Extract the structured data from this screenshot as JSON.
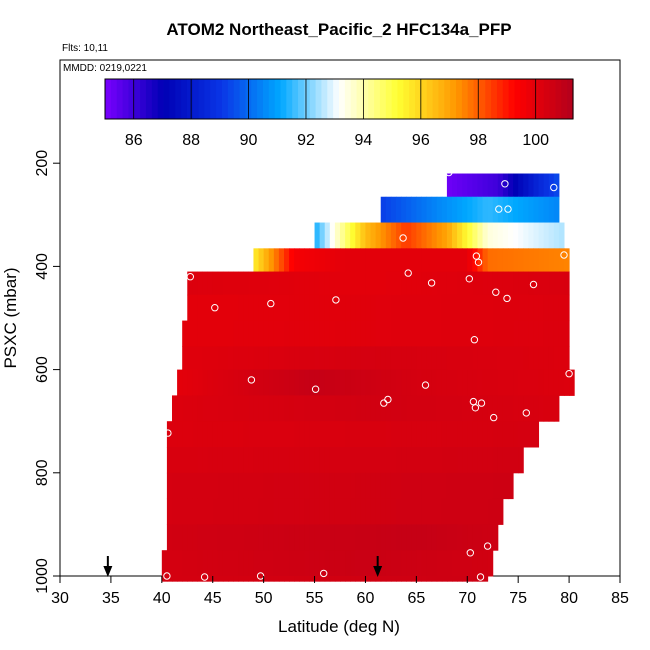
{
  "chart_data": {
    "type": "heatmap",
    "title": "ATOM2 Northeast_Pacific_2 HFC134a_PFP",
    "flights_text": "Flts: 10,11",
    "dates_text": "MMDD: 0219,0221",
    "xlabel": "Latitude (deg N)",
    "ylabel": "PSXC (mbar)",
    "xlim": [
      30,
      85
    ],
    "ylim": [
      1000,
      0
    ],
    "x_ticks": [
      30,
      35,
      40,
      45,
      50,
      55,
      60,
      65,
      70,
      75,
      80,
      85
    ],
    "y_ticks": [
      200,
      400,
      600,
      800,
      1000
    ],
    "colorbar": {
      "range": [
        85,
        101.3
      ],
      "ticks": [
        86,
        88,
        90,
        92,
        94,
        96,
        98,
        100
      ],
      "colors": [
        "#7a00ff",
        "#0000b5",
        "#0a36e6",
        "#00a8ff",
        "#ffffff",
        "#ffff33",
        "#ff9800",
        "#ff0000",
        "#b3001c"
      ]
    },
    "bands": [
      {
        "p0": 220,
        "p1": 265,
        "lat0": 68,
        "lat1": 79,
        "stops": [
          {
            "lat": 68,
            "v": 85.2
          },
          {
            "lat": 73,
            "v": 86.0
          },
          {
            "lat": 77,
            "v": 88.5
          },
          {
            "lat": 79,
            "v": 89.5
          }
        ]
      },
      {
        "p0": 265,
        "p1": 315,
        "lat0": 61.5,
        "lat1": 79,
        "stops": [
          {
            "lat": 61.5,
            "v": 89.2
          },
          {
            "lat": 67,
            "v": 90.5
          },
          {
            "lat": 72,
            "v": 91.5
          },
          {
            "lat": 79,
            "v": 90.5
          }
        ]
      },
      {
        "p0": 315,
        "p1": 365,
        "lat0": 55,
        "lat1": 79.5,
        "stops": [
          {
            "lat": 55,
            "v": 91.2
          },
          {
            "lat": 57,
            "v": 93.5
          },
          {
            "lat": 60,
            "v": 96.5
          },
          {
            "lat": 64,
            "v": 98.5
          },
          {
            "lat": 68,
            "v": 97.0
          },
          {
            "lat": 72,
            "v": 93.5
          },
          {
            "lat": 79.5,
            "v": 92.5
          }
        ]
      },
      {
        "p0": 365,
        "p1": 410,
        "lat0": 49,
        "lat1": 80,
        "stops": [
          {
            "lat": 49,
            "v": 95.5
          },
          {
            "lat": 51,
            "v": 97.5
          },
          {
            "lat": 53,
            "v": 99.5
          },
          {
            "lat": 58,
            "v": 100.0
          },
          {
            "lat": 70,
            "v": 100.0
          },
          {
            "lat": 72,
            "v": 97.8
          },
          {
            "lat": 80,
            "v": 97.5
          }
        ]
      },
      {
        "p0": 410,
        "p1": 455,
        "lat0": 42.5,
        "lat1": 80,
        "stops": [
          {
            "lat": 42.5,
            "v": 100.2
          },
          {
            "lat": 60,
            "v": 100.0
          },
          {
            "lat": 80,
            "v": 100.3
          }
        ]
      },
      {
        "p0": 455,
        "p1": 505,
        "lat0": 42.5,
        "lat1": 80,
        "stops": [
          {
            "lat": 42.5,
            "v": 100.0
          },
          {
            "lat": 80,
            "v": 100.2
          }
        ]
      },
      {
        "p0": 505,
        "p1": 555,
        "lat0": 42,
        "lat1": 80,
        "stops": [
          {
            "lat": 42,
            "v": 100.0
          },
          {
            "lat": 80,
            "v": 100.2
          }
        ]
      },
      {
        "p0": 555,
        "p1": 600,
        "lat0": 42,
        "lat1": 80,
        "stops": [
          {
            "lat": 42,
            "v": 100.1
          },
          {
            "lat": 60,
            "v": 100.4
          },
          {
            "lat": 80,
            "v": 100.2
          }
        ]
      },
      {
        "p0": 600,
        "p1": 650,
        "lat0": 41.5,
        "lat1": 80.5,
        "stops": [
          {
            "lat": 41.5,
            "v": 100.0
          },
          {
            "lat": 55,
            "v": 100.8
          },
          {
            "lat": 65,
            "v": 100.4
          },
          {
            "lat": 80.5,
            "v": 100.2
          }
        ]
      },
      {
        "p0": 650,
        "p1": 700,
        "lat0": 41,
        "lat1": 79,
        "stops": [
          {
            "lat": 41,
            "v": 100.2
          },
          {
            "lat": 60,
            "v": 100.5
          },
          {
            "lat": 79,
            "v": 100.3
          }
        ]
      },
      {
        "p0": 700,
        "p1": 750,
        "lat0": 40.5,
        "lat1": 77,
        "stops": [
          {
            "lat": 40.5,
            "v": 100.2
          },
          {
            "lat": 77,
            "v": 100.4
          }
        ]
      },
      {
        "p0": 750,
        "p1": 800,
        "lat0": 40.5,
        "lat1": 75.5,
        "stops": [
          {
            "lat": 40.5,
            "v": 100.3
          },
          {
            "lat": 75.5,
            "v": 100.5
          }
        ]
      },
      {
        "p0": 800,
        "p1": 850,
        "lat0": 40.5,
        "lat1": 74.5,
        "stops": [
          {
            "lat": 40.5,
            "v": 100.4
          },
          {
            "lat": 74.5,
            "v": 100.6
          }
        ]
      },
      {
        "p0": 850,
        "p1": 900,
        "lat0": 40.5,
        "lat1": 73.5,
        "stops": [
          {
            "lat": 40.5,
            "v": 100.4
          },
          {
            "lat": 73.5,
            "v": 100.6
          }
        ]
      },
      {
        "p0": 900,
        "p1": 950,
        "lat0": 40.5,
        "lat1": 73,
        "stops": [
          {
            "lat": 40.5,
            "v": 100.5
          },
          {
            "lat": 65,
            "v": 100.8
          },
          {
            "lat": 73,
            "v": 100.6
          }
        ]
      },
      {
        "p0": 950,
        "p1": 1000,
        "lat0": 40,
        "lat1": 72.5,
        "stops": [
          {
            "lat": 40,
            "v": 100.4
          },
          {
            "lat": 60,
            "v": 100.7
          },
          {
            "lat": 72.5,
            "v": 100.5
          }
        ]
      },
      {
        "p0": 1000,
        "p1": 1010,
        "lat0": 40,
        "lat1": 72,
        "stops": [
          {
            "lat": 40,
            "v": 100.4
          },
          {
            "lat": 72,
            "v": 100.6
          }
        ]
      }
    ],
    "points": [
      {
        "lat": 68.2,
        "p": 218
      },
      {
        "lat": 73.7,
        "p": 240
      },
      {
        "lat": 78.5,
        "p": 247
      },
      {
        "lat": 73.1,
        "p": 289
      },
      {
        "lat": 74.0,
        "p": 289
      },
      {
        "lat": 63.7,
        "p": 345
      },
      {
        "lat": 79.5,
        "p": 378
      },
      {
        "lat": 70.9,
        "p": 380
      },
      {
        "lat": 71.1,
        "p": 392
      },
      {
        "lat": 64.2,
        "p": 413
      },
      {
        "lat": 42.8,
        "p": 420
      },
      {
        "lat": 70.2,
        "p": 424
      },
      {
        "lat": 66.5,
        "p": 432
      },
      {
        "lat": 76.5,
        "p": 435
      },
      {
        "lat": 72.8,
        "p": 450
      },
      {
        "lat": 73.9,
        "p": 462
      },
      {
        "lat": 57.1,
        "p": 465
      },
      {
        "lat": 50.7,
        "p": 472
      },
      {
        "lat": 45.2,
        "p": 480
      },
      {
        "lat": 70.7,
        "p": 542
      },
      {
        "lat": 80.0,
        "p": 608
      },
      {
        "lat": 48.8,
        "p": 620
      },
      {
        "lat": 65.9,
        "p": 630
      },
      {
        "lat": 55.1,
        "p": 638
      },
      {
        "lat": 62.2,
        "p": 658
      },
      {
        "lat": 61.8,
        "p": 665
      },
      {
        "lat": 70.6,
        "p": 662
      },
      {
        "lat": 71.4,
        "p": 665
      },
      {
        "lat": 70.8,
        "p": 674
      },
      {
        "lat": 75.8,
        "p": 684
      },
      {
        "lat": 72.6,
        "p": 693
      },
      {
        "lat": 40.6,
        "p": 723
      },
      {
        "lat": 72.0,
        "p": 942
      },
      {
        "lat": 70.3,
        "p": 955
      },
      {
        "lat": 55.9,
        "p": 995
      },
      {
        "lat": 40.5,
        "p": 1000
      },
      {
        "lat": 44.2,
        "p": 1002
      },
      {
        "lat": 49.7,
        "p": 1000
      },
      {
        "lat": 71.3,
        "p": 1002
      }
    ],
    "arrows": [
      34.7,
      61.2
    ]
  }
}
